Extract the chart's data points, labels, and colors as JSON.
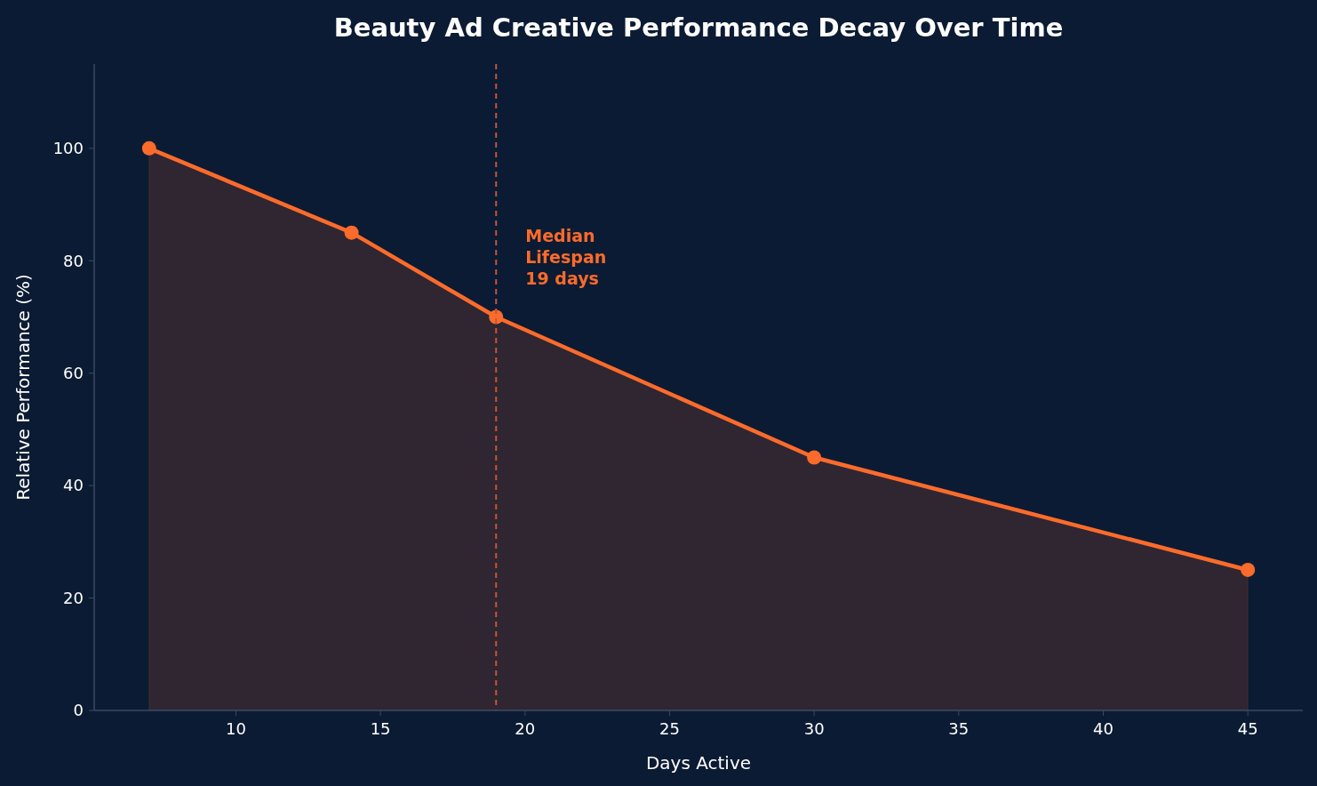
{
  "chart_data": {
    "type": "area",
    "title": "Beauty Ad Creative Performance Decay Over Time",
    "xlabel": "Days Active",
    "ylabel": "Relative Performance (%)",
    "x": [
      7,
      14,
      19,
      30,
      45
    ],
    "series": [
      {
        "color": "#ff6b2b",
        "values": [
          100,
          85,
          70,
          45,
          25
        ]
      }
    ],
    "xlim": [
      5.1,
      46.9
    ],
    "xticks": [
      10,
      15,
      20,
      25,
      30,
      35,
      40,
      45
    ],
    "ylim": [
      0,
      115
    ],
    "yticks": [
      0,
      20,
      40,
      60,
      80,
      100
    ],
    "marker": "circle",
    "grid": false,
    "ref_lines": [
      {
        "axis": "x",
        "value": 19,
        "label": "Median Lifespan 19 days",
        "color": "#c4553a",
        "line_style": "dashed"
      }
    ]
  }
}
